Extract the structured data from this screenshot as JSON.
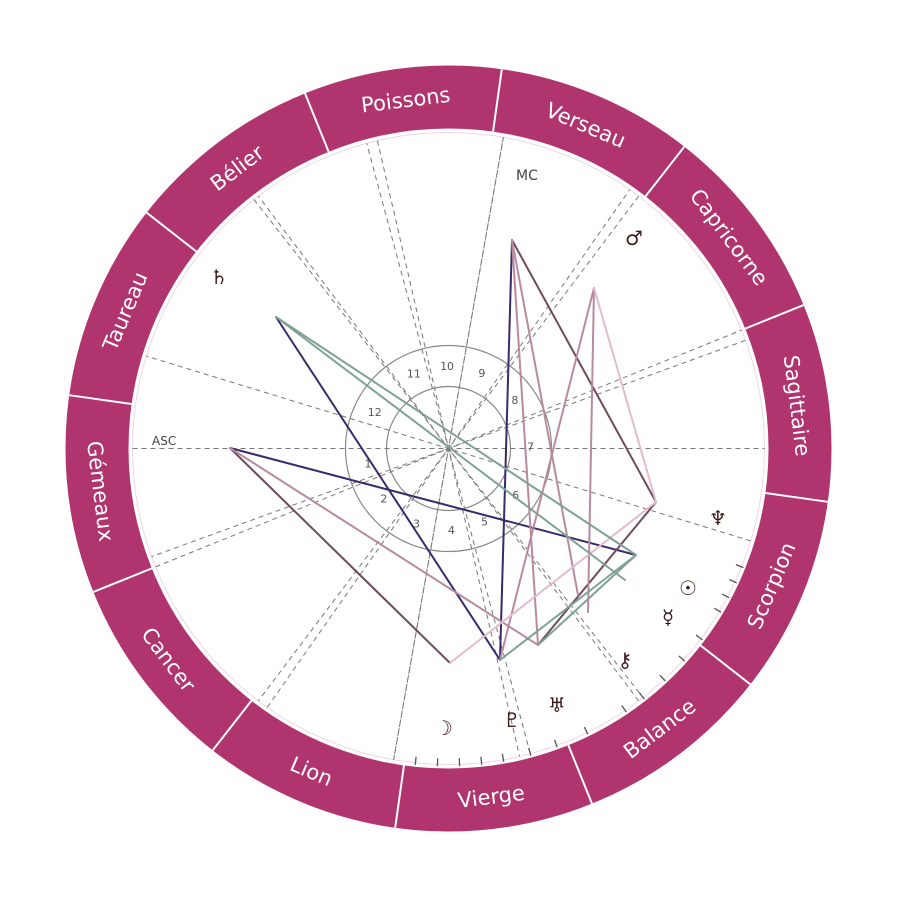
{
  "signs": [
    {
      "id": "aries",
      "label": "Bélier"
    },
    {
      "id": "taurus",
      "label": "Taureau"
    },
    {
      "id": "gemini",
      "label": "Gémeaux"
    },
    {
      "id": "cancer",
      "label": "Cancer"
    },
    {
      "id": "leo",
      "label": "Lion"
    },
    {
      "id": "virgo",
      "label": "Vierge"
    },
    {
      "id": "libra",
      "label": "Balance"
    },
    {
      "id": "scorpio",
      "label": "Scorpion"
    },
    {
      "id": "sagittarius",
      "label": "Sagittaire"
    },
    {
      "id": "capricorn",
      "label": "Capricorne"
    },
    {
      "id": "aquarius",
      "label": "Verseau"
    },
    {
      "id": "pisces",
      "label": "Poissons"
    }
  ],
  "houses": [
    "1",
    "2",
    "3",
    "4",
    "5",
    "6",
    "7",
    "8",
    "9",
    "10",
    "11",
    "12"
  ],
  "axes": {
    "asc": "ASC",
    "mc": "MC"
  },
  "planets": [
    {
      "id": "moon",
      "glyph": "☽"
    },
    {
      "id": "pluto",
      "glyph": "♇"
    },
    {
      "id": "uranus",
      "glyph": "♅"
    },
    {
      "id": "chiron",
      "glyph": "⚷"
    },
    {
      "id": "mercury",
      "glyph": "☿"
    },
    {
      "id": "sun",
      "glyph": "☉"
    },
    {
      "id": "neptune",
      "glyph": "♆"
    },
    {
      "id": "mars",
      "glyph": "♂"
    },
    {
      "id": "saturn",
      "glyph": "♄"
    }
  ],
  "colors": {
    "ring": "#b0356e",
    "glyph": "#3d1a1a",
    "aspect_dark": "#3a2a6a",
    "aspect_mauve": "#6e4b5f",
    "aspect_rose": "#b88aa0",
    "aspect_pink": "#e3bccc",
    "aspect_green": "#7fa294"
  }
}
